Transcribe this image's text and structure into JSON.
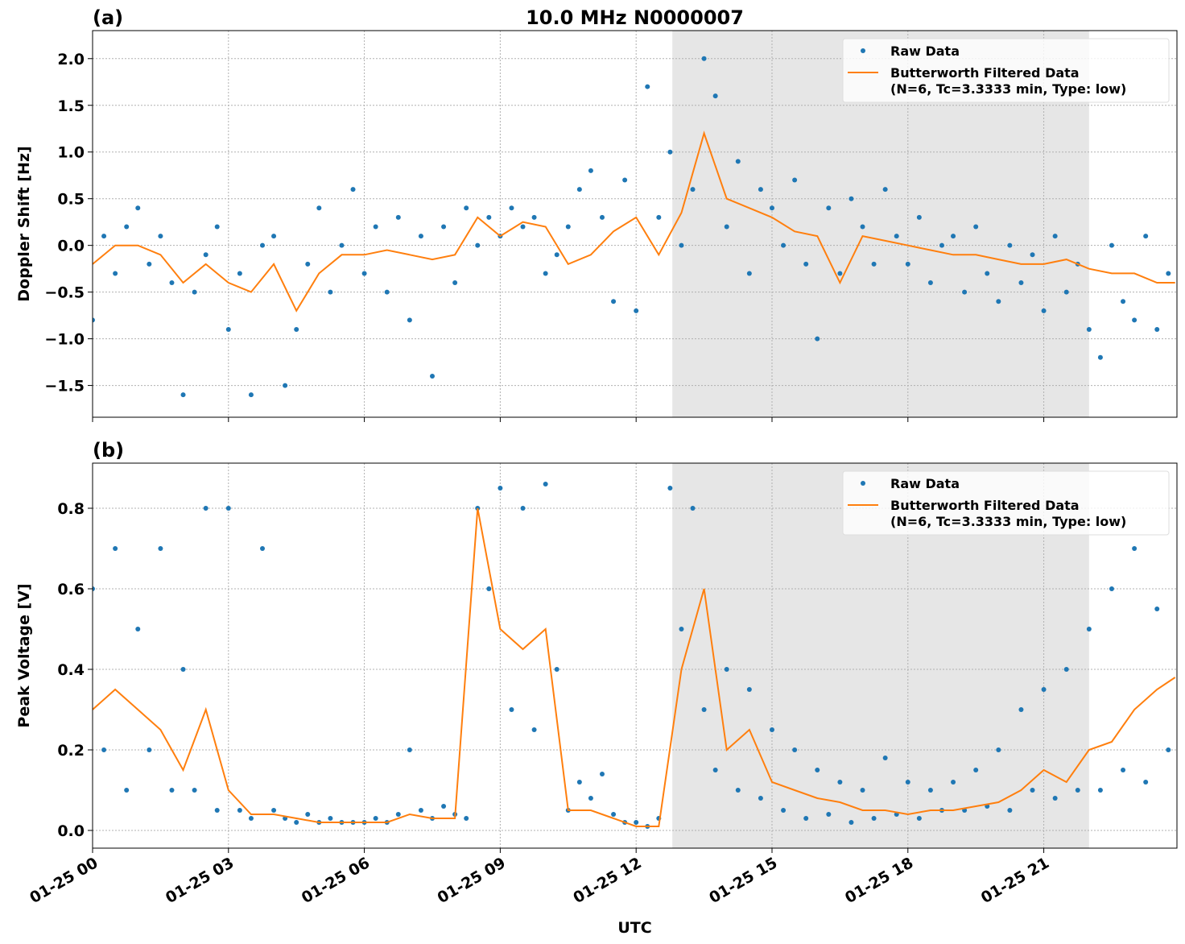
{
  "chart_data": [
    {
      "type": "scatter",
      "panel_label": "(a)",
      "title": "10.0 MHz N0000007",
      "ylabel": "Doppler Shift [Hz]",
      "xlim": [
        0,
        23.94
      ],
      "ylim": [
        -1.84,
        2.3
      ],
      "xticks": [
        0,
        3,
        6,
        9,
        12,
        15,
        18,
        21
      ],
      "yticks": [
        {
          "value": -1.5,
          "label": "−1.5"
        },
        {
          "value": -1.0,
          "label": "−1.0"
        },
        {
          "value": -0.5,
          "label": "−0.5"
        },
        {
          "value": 0.0,
          "label": "0.0"
        },
        {
          "value": 0.5,
          "label": "0.5"
        },
        {
          "value": 1.0,
          "label": "1.0"
        },
        {
          "value": 1.5,
          "label": "1.5"
        },
        {
          "value": 2.0,
          "label": "2.0"
        }
      ],
      "grid": true,
      "legend": "upper right",
      "shaded_xspan": [
        12.8,
        22.0
      ],
      "shade_color": "#e6e6e6",
      "series": [
        {
          "name": "Raw Data",
          "style": "markers",
          "color": "#1f77b4",
          "x": [
            0,
            0.25,
            0.5,
            0.75,
            1,
            1.25,
            1.5,
            1.75,
            2,
            2.25,
            2.5,
            2.75,
            3,
            3.25,
            3.5,
            3.75,
            4,
            4.25,
            4.5,
            4.75,
            5,
            5.25,
            5.5,
            5.75,
            6,
            6.25,
            6.5,
            6.75,
            7,
            7.25,
            7.5,
            7.75,
            8,
            8.25,
            8.5,
            8.75,
            9,
            9.25,
            9.5,
            9.75,
            10,
            10.25,
            10.5,
            10.75,
            11,
            11.25,
            11.5,
            11.75,
            12,
            12.25,
            12.5,
            12.75,
            13,
            13.25,
            13.5,
            13.75,
            14,
            14.25,
            14.5,
            14.75,
            15,
            15.25,
            15.5,
            15.75,
            16,
            16.25,
            16.5,
            16.75,
            17,
            17.25,
            17.5,
            17.75,
            18,
            18.25,
            18.5,
            18.75,
            19,
            19.25,
            19.5,
            19.75,
            20,
            20.25,
            20.5,
            20.75,
            21,
            21.25,
            21.5,
            21.75,
            22,
            22.25,
            22.5,
            22.75,
            23,
            23.25,
            23.5,
            23.75
          ],
          "values": [
            -0.8,
            0.1,
            -0.3,
            0.2,
            0.4,
            -0.2,
            0.1,
            -0.4,
            -1.6,
            -0.5,
            -0.1,
            0.2,
            -0.9,
            -0.3,
            -1.6,
            0.0,
            0.1,
            -1.5,
            -0.9,
            -0.2,
            0.4,
            -0.5,
            0.0,
            0.6,
            -0.3,
            0.2,
            -0.5,
            0.3,
            -0.8,
            0.1,
            -1.4,
            0.2,
            -0.4,
            0.4,
            0.0,
            0.3,
            0.1,
            0.4,
            0.2,
            0.3,
            -0.3,
            -0.1,
            0.2,
            0.6,
            0.8,
            0.3,
            -0.6,
            0.7,
            -0.7,
            1.7,
            0.3,
            1.0,
            0.0,
            0.6,
            2.0,
            1.6,
            0.2,
            0.9,
            -0.3,
            0.6,
            0.4,
            0.0,
            0.7,
            -0.2,
            -1.0,
            0.4,
            -0.3,
            0.5,
            0.2,
            -0.2,
            0.6,
            0.1,
            -0.2,
            0.3,
            -0.4,
            0.0,
            0.1,
            -0.5,
            0.2,
            -0.3,
            -0.6,
            0.0,
            -0.4,
            -0.1,
            -0.7,
            0.1,
            -0.5,
            -0.2,
            -0.9,
            -1.2,
            0.0,
            -0.6,
            -0.8,
            0.1,
            -0.9,
            -0.3
          ]
        },
        {
          "name": "Butterworth Filtered Data\n(N=6, Tc=3.3333 min, Type: low)",
          "style": "line",
          "color": "#ff7f0e",
          "x": [
            0,
            0.5,
            1,
            1.5,
            2,
            2.5,
            3,
            3.5,
            4,
            4.5,
            5,
            5.5,
            6,
            6.5,
            7,
            7.5,
            8,
            8.5,
            9,
            9.5,
            10,
            10.5,
            11,
            11.5,
            12,
            12.5,
            13,
            13.5,
            14,
            14.5,
            15,
            15.5,
            16,
            16.5,
            17,
            17.5,
            18,
            18.5,
            19,
            19.5,
            20,
            20.5,
            21,
            21.5,
            22,
            22.5,
            23,
            23.5,
            23.9
          ],
          "values": [
            -0.2,
            0.0,
            0.0,
            -0.1,
            -0.4,
            -0.2,
            -0.4,
            -0.5,
            -0.2,
            -0.7,
            -0.3,
            -0.1,
            -0.1,
            -0.05,
            -0.1,
            -0.15,
            -0.1,
            0.3,
            0.1,
            0.25,
            0.2,
            -0.2,
            -0.1,
            0.15,
            0.3,
            -0.1,
            0.35,
            1.2,
            0.5,
            0.4,
            0.3,
            0.15,
            0.1,
            -0.4,
            0.1,
            0.05,
            0.0,
            -0.05,
            -0.1,
            -0.1,
            -0.15,
            -0.2,
            -0.2,
            -0.15,
            -0.25,
            -0.3,
            -0.3,
            -0.4,
            -0.4
          ]
        }
      ]
    },
    {
      "type": "scatter",
      "panel_label": "(b)",
      "ylabel": "Peak Voltage [V]",
      "xlabel": "UTC",
      "xlim": [
        0,
        23.94
      ],
      "ylim": [
        -0.044,
        0.912
      ],
      "xticks": [
        {
          "value": 0,
          "label": "01-25 00"
        },
        {
          "value": 3,
          "label": "01-25 03"
        },
        {
          "value": 6,
          "label": "01-25 06"
        },
        {
          "value": 9,
          "label": "01-25 09"
        },
        {
          "value": 12,
          "label": "01-25 12"
        },
        {
          "value": 15,
          "label": "01-25 15"
        },
        {
          "value": 18,
          "label": "01-25 18"
        },
        {
          "value": 21,
          "label": "01-25 21"
        }
      ],
      "yticks": [
        {
          "value": 0.0,
          "label": "0.0"
        },
        {
          "value": 0.2,
          "label": "0.2"
        },
        {
          "value": 0.4,
          "label": "0.4"
        },
        {
          "value": 0.6,
          "label": "0.6"
        },
        {
          "value": 0.8,
          "label": "0.8"
        }
      ],
      "grid": true,
      "legend": "upper right",
      "shaded_xspan": [
        12.8,
        22.0
      ],
      "shade_color": "#e6e6e6",
      "series": [
        {
          "name": "Raw Data",
          "style": "markers",
          "color": "#1f77b4",
          "x": [
            0,
            0.25,
            0.5,
            0.75,
            1,
            1.25,
            1.5,
            1.75,
            2,
            2.25,
            2.5,
            2.75,
            3,
            3.25,
            3.5,
            3.75,
            4,
            4.25,
            4.5,
            4.75,
            5,
            5.25,
            5.5,
            5.75,
            6,
            6.25,
            6.5,
            6.75,
            7,
            7.25,
            7.5,
            7.75,
            8,
            8.25,
            8.5,
            8.75,
            9,
            9.25,
            9.5,
            9.75,
            10,
            10.25,
            10.5,
            10.75,
            11,
            11.25,
            11.5,
            11.75,
            12,
            12.25,
            12.5,
            12.75,
            13,
            13.25,
            13.5,
            13.75,
            14,
            14.25,
            14.5,
            14.75,
            15,
            15.25,
            15.5,
            15.75,
            16,
            16.25,
            16.5,
            16.75,
            17,
            17.25,
            17.5,
            17.75,
            18,
            18.25,
            18.5,
            18.75,
            19,
            19.25,
            19.5,
            19.75,
            20,
            20.25,
            20.5,
            20.75,
            21,
            21.25,
            21.5,
            21.75,
            22,
            22.25,
            22.5,
            22.75,
            23,
            23.25,
            23.5,
            23.75
          ],
          "values": [
            0.6,
            0.2,
            0.7,
            0.1,
            0.5,
            0.2,
            0.7,
            0.1,
            0.4,
            0.1,
            0.8,
            0.05,
            0.8,
            0.05,
            0.03,
            0.7,
            0.05,
            0.03,
            0.02,
            0.04,
            0.02,
            0.03,
            0.02,
            0.02,
            0.02,
            0.03,
            0.02,
            0.04,
            0.2,
            0.05,
            0.03,
            0.06,
            0.04,
            0.03,
            0.8,
            0.6,
            0.85,
            0.3,
            0.8,
            0.25,
            0.86,
            0.4,
            0.05,
            0.12,
            0.08,
            0.14,
            0.04,
            0.02,
            0.02,
            0.01,
            0.03,
            0.85,
            0.5,
            0.8,
            0.3,
            0.15,
            0.4,
            0.1,
            0.35,
            0.08,
            0.25,
            0.05,
            0.2,
            0.03,
            0.15,
            0.04,
            0.12,
            0.02,
            0.1,
            0.03,
            0.18,
            0.04,
            0.12,
            0.03,
            0.1,
            0.05,
            0.12,
            0.05,
            0.15,
            0.06,
            0.2,
            0.05,
            0.3,
            0.1,
            0.35,
            0.08,
            0.4,
            0.1,
            0.5,
            0.1,
            0.6,
            0.15,
            0.7,
            0.12,
            0.55,
            0.2
          ]
        },
        {
          "name": "Butterworth Filtered Data\n(N=6, Tc=3.3333 min, Type: low)",
          "style": "line",
          "color": "#ff7f0e",
          "x": [
            0,
            0.5,
            1,
            1.5,
            2,
            2.5,
            3,
            3.5,
            4,
            4.5,
            5,
            5.5,
            6,
            6.5,
            7,
            7.5,
            8,
            8.5,
            9,
            9.5,
            10,
            10.5,
            11,
            11.5,
            12,
            12.5,
            13,
            13.5,
            14,
            14.5,
            15,
            15.5,
            16,
            16.5,
            17,
            17.5,
            18,
            18.5,
            19,
            19.5,
            20,
            20.5,
            21,
            21.5,
            22,
            22.5,
            23,
            23.5,
            23.9
          ],
          "values": [
            0.3,
            0.35,
            0.3,
            0.25,
            0.15,
            0.3,
            0.1,
            0.04,
            0.04,
            0.03,
            0.02,
            0.02,
            0.02,
            0.02,
            0.04,
            0.03,
            0.03,
            0.8,
            0.5,
            0.45,
            0.5,
            0.05,
            0.05,
            0.03,
            0.01,
            0.01,
            0.4,
            0.6,
            0.2,
            0.25,
            0.12,
            0.1,
            0.08,
            0.07,
            0.05,
            0.05,
            0.04,
            0.05,
            0.05,
            0.06,
            0.07,
            0.1,
            0.15,
            0.12,
            0.2,
            0.22,
            0.3,
            0.35,
            0.38
          ]
        }
      ]
    }
  ]
}
